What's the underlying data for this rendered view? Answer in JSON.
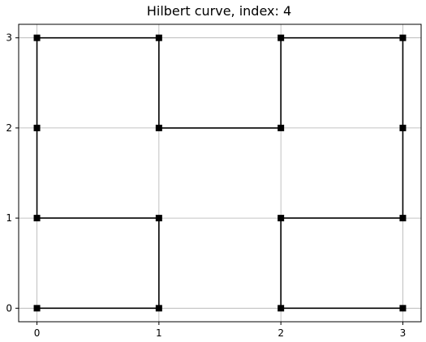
{
  "chart_data": {
    "type": "line",
    "title": "Hilbert curve, index: 4",
    "xlabel": "",
    "ylabel": "",
    "xlim": [
      -0.15,
      3.15
    ],
    "ylim": [
      -0.15,
      3.15
    ],
    "xticks": [
      0,
      1,
      2,
      3
    ],
    "yticks": [
      0,
      1,
      2,
      3
    ],
    "grid": true,
    "marker": "square",
    "line_color": "#000000",
    "grid_color": "#b0b0b0",
    "series": [
      {
        "points": [
          [
            0,
            0
          ],
          [
            1,
            0
          ],
          [
            1,
            1
          ],
          [
            0,
            1
          ],
          [
            0,
            2
          ],
          [
            0,
            3
          ],
          [
            1,
            3
          ],
          [
            1,
            2
          ],
          [
            2,
            2
          ],
          [
            2,
            3
          ],
          [
            3,
            3
          ],
          [
            3,
            2
          ],
          [
            3,
            1
          ],
          [
            2,
            1
          ],
          [
            2,
            0
          ],
          [
            3,
            0
          ]
        ]
      }
    ]
  }
}
